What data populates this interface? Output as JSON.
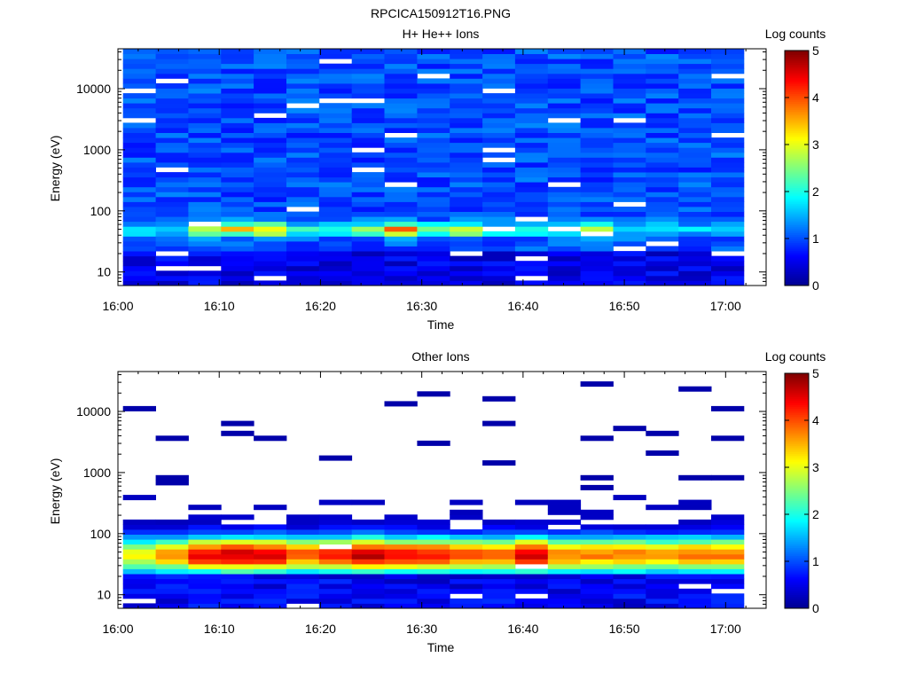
{
  "figure_title": "RPCICA150912T16.PNG",
  "colors": {
    "background": "#ffffff",
    "axis": "#000000",
    "colormap": [
      "#00008f",
      "#0000ff",
      "#007fff",
      "#00ffff",
      "#7fff7f",
      "#ffff00",
      "#ff7f00",
      "#ff0000",
      "#7f0000"
    ]
  },
  "chart_data": [
    {
      "type": "heatmap",
      "title": "H+ He++ Ions",
      "xlabel": "Time",
      "ylabel": "Energy (eV)",
      "x_tick_labels": [
        "16:00",
        "16:10",
        "16:20",
        "16:30",
        "16:40",
        "16:50",
        "17:00"
      ],
      "x_ticks_minutes": [
        0,
        10,
        20,
        30,
        40,
        50,
        60
      ],
      "xlim_minutes": [
        0,
        64
      ],
      "data_extent_minutes": [
        0.5,
        61.8
      ],
      "time_bins": 19,
      "y_scale": "log",
      "ylim": [
        6,
        45000
      ],
      "y_tick_labels": [
        "10",
        "100",
        "1000",
        "10000"
      ],
      "y_tick_values": [
        10,
        100,
        1000,
        10000
      ],
      "energy_bins": 48,
      "colorbar": {
        "label": "Log counts",
        "range": [
          0,
          5
        ],
        "tick_labels": [
          "0",
          "1",
          "2",
          "3",
          "4",
          "5"
        ]
      },
      "notes": "Broadband background ~0.5-1.5 log counts at all energies; peak ~3-4 log counts near 40-60 eV; gaps (white) at some bins.",
      "peak_energy_eV": 50,
      "peak_log_counts_by_bin": [
        1.8,
        1.5,
        3.0,
        3.2,
        3.3,
        2.0,
        1.9,
        2.6,
        3.8,
        2.4,
        3.0,
        2.0,
        2.0,
        1.8,
        3.1,
        1.9,
        1.8,
        1.8,
        1.8
      ]
    },
    {
      "type": "heatmap",
      "title": "Other Ions",
      "xlabel": "Time",
      "ylabel": "Energy (eV)",
      "x_tick_labels": [
        "16:00",
        "16:10",
        "16:20",
        "16:30",
        "16:40",
        "16:50",
        "17:00"
      ],
      "x_ticks_minutes": [
        0,
        10,
        20,
        30,
        40,
        50,
        60
      ],
      "xlim_minutes": [
        0,
        64
      ],
      "data_extent_minutes": [
        0.5,
        61.8
      ],
      "time_bins": 19,
      "y_scale": "log",
      "ylim": [
        6,
        45000
      ],
      "y_tick_labels": [
        "10",
        "100",
        "1000",
        "10000"
      ],
      "y_tick_values": [
        10,
        100,
        1000,
        10000
      ],
      "energy_bins": 48,
      "colorbar": {
        "label": "Log counts",
        "range": [
          0,
          5
        ],
        "tick_labels": [
          "0",
          "1",
          "2",
          "3",
          "4",
          "5"
        ]
      },
      "notes": "Intense band ~30-60 eV (3.5-4.5 log counts), falling off above ~200 eV; sparse single-count lines at high energy.",
      "peak_energy_eV": 45,
      "peak_log_counts_by_bin": [
        3.0,
        3.5,
        4.3,
        4.5,
        4.4,
        3.8,
        4.0,
        4.6,
        4.2,
        4.2,
        3.8,
        3.7,
        4.5,
        3.6,
        3.6,
        3.6,
        3.5,
        3.7,
        3.7
      ]
    }
  ]
}
